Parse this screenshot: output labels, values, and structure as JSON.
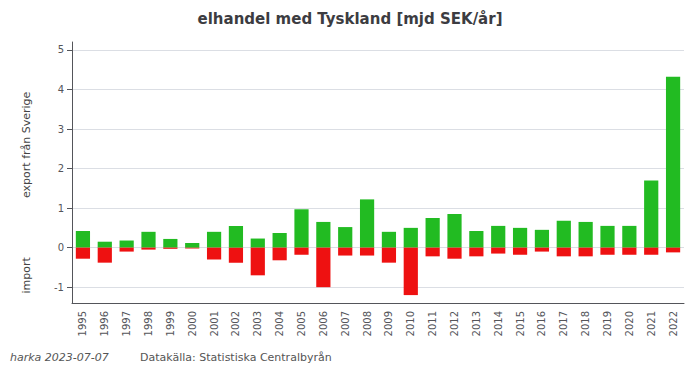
{
  "chart_data": {
    "type": "bar",
    "title": "elhandel med Tyskland [mjd SEK/år]",
    "ylabel_top": "export från Sverige",
    "ylabel_bottom": "import",
    "annotations": [
      "harka 2023-07-07",
      "Datakälla: Statistiska Centralbyrån"
    ],
    "categories": [
      1995,
      1996,
      1997,
      1998,
      1999,
      2000,
      2001,
      2002,
      2003,
      2004,
      2005,
      2006,
      2007,
      2008,
      2009,
      2010,
      2011,
      2012,
      2013,
      2014,
      2015,
      2016,
      2017,
      2018,
      2019,
      2020,
      2021,
      2022
    ],
    "series": [
      {
        "color": "#22bb22",
        "values": [
          0.42,
          0.15,
          0.18,
          0.4,
          0.22,
          0.12,
          0.4,
          0.55,
          0.23,
          0.37,
          0.97,
          0.65,
          0.52,
          1.22,
          0.4,
          0.5,
          0.75,
          0.85,
          0.42,
          0.55,
          0.5,
          0.45,
          0.68,
          0.65,
          0.55,
          0.55,
          1.7,
          4.32
        ]
      },
      {
        "color": "#ee1111",
        "values": [
          -0.28,
          -0.38,
          -0.1,
          -0.05,
          -0.03,
          -0.02,
          -0.3,
          -0.38,
          -0.7,
          -0.32,
          -0.18,
          -1.0,
          -0.2,
          -0.2,
          -0.38,
          -1.2,
          -0.22,
          -0.28,
          -0.22,
          -0.15,
          -0.18,
          -0.1,
          -0.22,
          -0.22,
          -0.18,
          -0.18,
          -0.18,
          -0.12
        ]
      }
    ],
    "ylim": [
      -1.4,
      5.2
    ],
    "yticks": [
      -1,
      0,
      1,
      2,
      3,
      4,
      5
    ],
    "grid": true
  }
}
